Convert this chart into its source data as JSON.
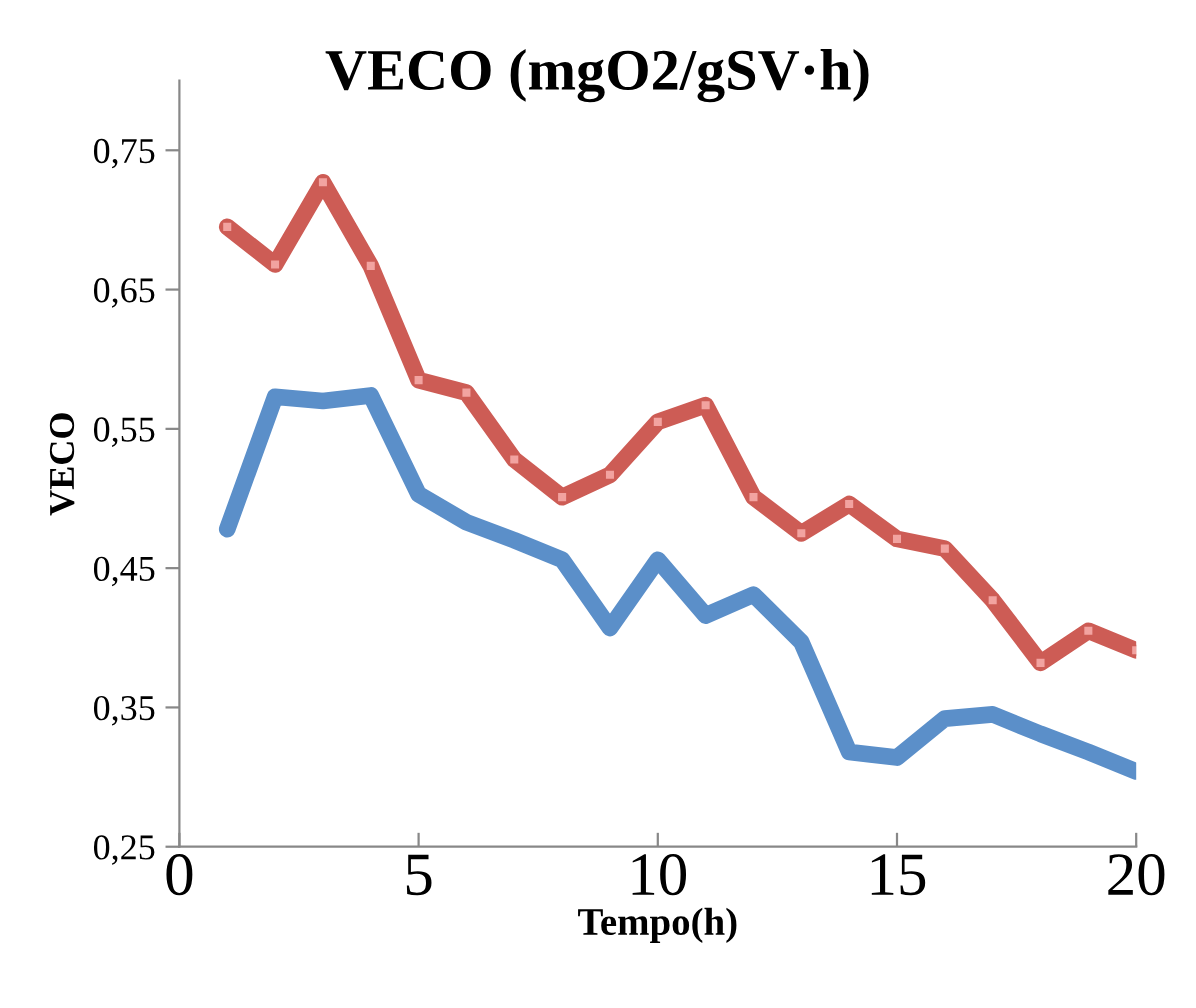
{
  "chart_data": {
    "type": "line",
    "title": "VECO (mgO2/gSV·h)",
    "xlabel": "Tempo(h)",
    "ylabel": "VECO",
    "x": [
      1,
      2,
      3,
      4,
      5,
      6,
      7,
      8,
      9,
      10,
      11,
      12,
      13,
      14,
      15,
      16,
      17,
      18,
      19,
      20
    ],
    "series": [
      {
        "color": "#5b8fc9",
        "marker": "none",
        "values": [
          0.478,
          0.573,
          0.57,
          0.574,
          0.503,
          0.483,
          0.47,
          0.456,
          0.407,
          0.456,
          0.416,
          0.431,
          0.397,
          0.318,
          0.314,
          0.342,
          0.345,
          0.331,
          0.318,
          0.304
        ]
      },
      {
        "color": "#cd5c55",
        "marker": "square",
        "values": [
          0.695,
          0.668,
          0.727,
          0.667,
          0.585,
          0.576,
          0.528,
          0.501,
          0.517,
          0.555,
          0.567,
          0.501,
          0.475,
          0.496,
          0.471,
          0.464,
          0.427,
          0.382,
          0.405,
          0.391
        ]
      }
    ],
    "xlim": [
      0,
      20
    ],
    "ylim": [
      0.25,
      0.8
    ],
    "xticks": [
      0,
      5,
      10,
      15,
      20
    ],
    "yticks": [
      {
        "value": 0.25,
        "label": "0,25"
      },
      {
        "value": 0.35,
        "label": "0,35"
      },
      {
        "value": 0.45,
        "label": "0,45"
      },
      {
        "value": 0.55,
        "label": "0,55"
      },
      {
        "value": 0.65,
        "label": "0,65"
      },
      {
        "value": 0.75,
        "label": "0,75"
      }
    ],
    "grid": false,
    "legend": false,
    "line_style": "solid"
  }
}
